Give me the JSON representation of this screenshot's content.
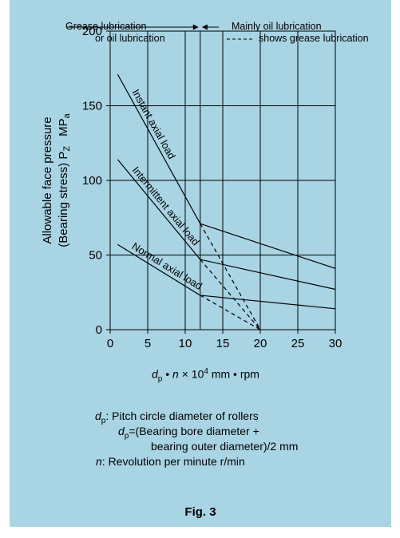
{
  "chart_data": {
    "type": "line",
    "x_ticks": [
      0,
      5,
      10,
      15,
      20,
      25,
      30
    ],
    "y_ticks": [
      0,
      50,
      100,
      150,
      200
    ],
    "xlim": [
      0,
      30
    ],
    "ylim": [
      0,
      200
    ],
    "grid": true,
    "ylabel_line1": "Allowable face pressure",
    "ylabel_line2": "(Bearing stress) P",
    "ylabel_sub": "Z",
    "ylabel_unit": "MP",
    "ylabel_unit_sub": "a",
    "x_label": {
      "d": "d",
      "p": "p",
      "bullet_n": " • ",
      "n": "n",
      "times": " × 10",
      "exp": "4",
      "units": "  mm • rpm"
    },
    "regions": {
      "left_line1": "Grease lubrication",
      "left_line2": "or oil lubrication",
      "right_line1": "Mainly oil lubrication",
      "dashed_legend": "shows grease lubrication",
      "divider_x": 12
    },
    "series": [
      {
        "name": "Instant axial load",
        "style": "solid",
        "points": [
          [
            1,
            171
          ],
          [
            12,
            71
          ],
          [
            30,
            41
          ]
        ]
      },
      {
        "name": "Intermittent axial load",
        "style": "solid",
        "points": [
          [
            1,
            114
          ],
          [
            12,
            47
          ],
          [
            30,
            27
          ]
        ]
      },
      {
        "name": "Normal axial load",
        "style": "solid",
        "points": [
          [
            1,
            57
          ],
          [
            12,
            23
          ],
          [
            30,
            14
          ]
        ]
      },
      {
        "name": "",
        "style": "dashed",
        "points": [
          [
            12,
            71
          ],
          [
            20,
            0
          ]
        ]
      },
      {
        "name": "",
        "style": "dashed",
        "points": [
          [
            12,
            47
          ],
          [
            20,
            0
          ]
        ]
      },
      {
        "name": "",
        "style": "dashed",
        "points": [
          [
            12,
            23
          ],
          [
            20,
            0
          ]
        ]
      }
    ]
  },
  "notes": {
    "line1_d": "d",
    "line1_p": "p",
    "line1_rest": ": Pitch circle diameter of rollers",
    "line2_d": "d",
    "line2_p": "p",
    "line2_rest": "=(Bearing bore diameter +",
    "line3": "bearing outer diameter)/2    mm",
    "line4_n": "n",
    "line4_rest": ": Revolution per minute r/min"
  },
  "caption": "Fig. 3",
  "colors": {
    "background": "#a9d4e4",
    "line": "#000000"
  }
}
